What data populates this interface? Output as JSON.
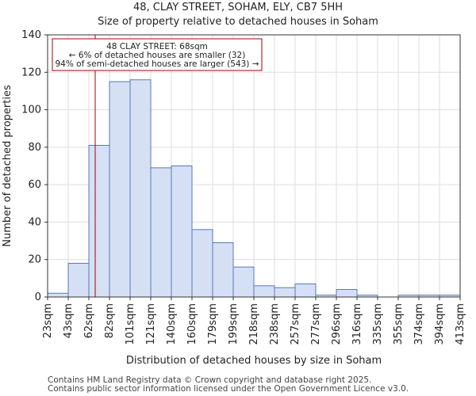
{
  "chart_data": {
    "type": "bar",
    "title": "48, CLAY STREET, SOHAM, ELY, CB7 5HH",
    "subtitle": "Size of property relative to detached houses in Soham",
    "xlabel": "Distribution of detached houses by size in Soham",
    "ylabel": "Number of detached properties",
    "ylim": [
      0,
      140
    ],
    "yticks": [
      0,
      20,
      40,
      60,
      80,
      100,
      120,
      140
    ],
    "xlim": [
      23,
      413
    ],
    "xtick_labels": [
      "23sqm",
      "43sqm",
      "62sqm",
      "82sqm",
      "101sqm",
      "121sqm",
      "140sqm",
      "160sqm",
      "179sqm",
      "199sqm",
      "218sqm",
      "238sqm",
      "257sqm",
      "277sqm",
      "296sqm",
      "316sqm",
      "335sqm",
      "355sqm",
      "374sqm",
      "394sqm",
      "413sqm"
    ],
    "xtick_values": [
      23,
      42.5,
      62,
      81.5,
      101,
      120.5,
      140,
      159.5,
      179,
      198.5,
      218,
      237.5,
      257,
      276.5,
      296,
      315.5,
      335,
      354.5,
      374,
      393.5,
      413
    ],
    "values": [
      2,
      18,
      81,
      115,
      116,
      69,
      70,
      36,
      29,
      16,
      6,
      5,
      7,
      1,
      4,
      1,
      0,
      1,
      1,
      1
    ],
    "bar_color": "#d6e0f5",
    "bar_edge": "#5577bb",
    "marker": {
      "value": 68,
      "color": "#aa0000",
      "lines": [
        "48 CLAY STREET: 68sqm",
        "← 6% of detached houses are smaller (32)",
        "94% of semi-detached houses are larger (543) →"
      ]
    }
  },
  "footer": {
    "line1": "Contains HM Land Registry data © Crown copyright and database right 2025.",
    "line2": "Contains public sector information licensed under the Open Government Licence v3.0."
  }
}
